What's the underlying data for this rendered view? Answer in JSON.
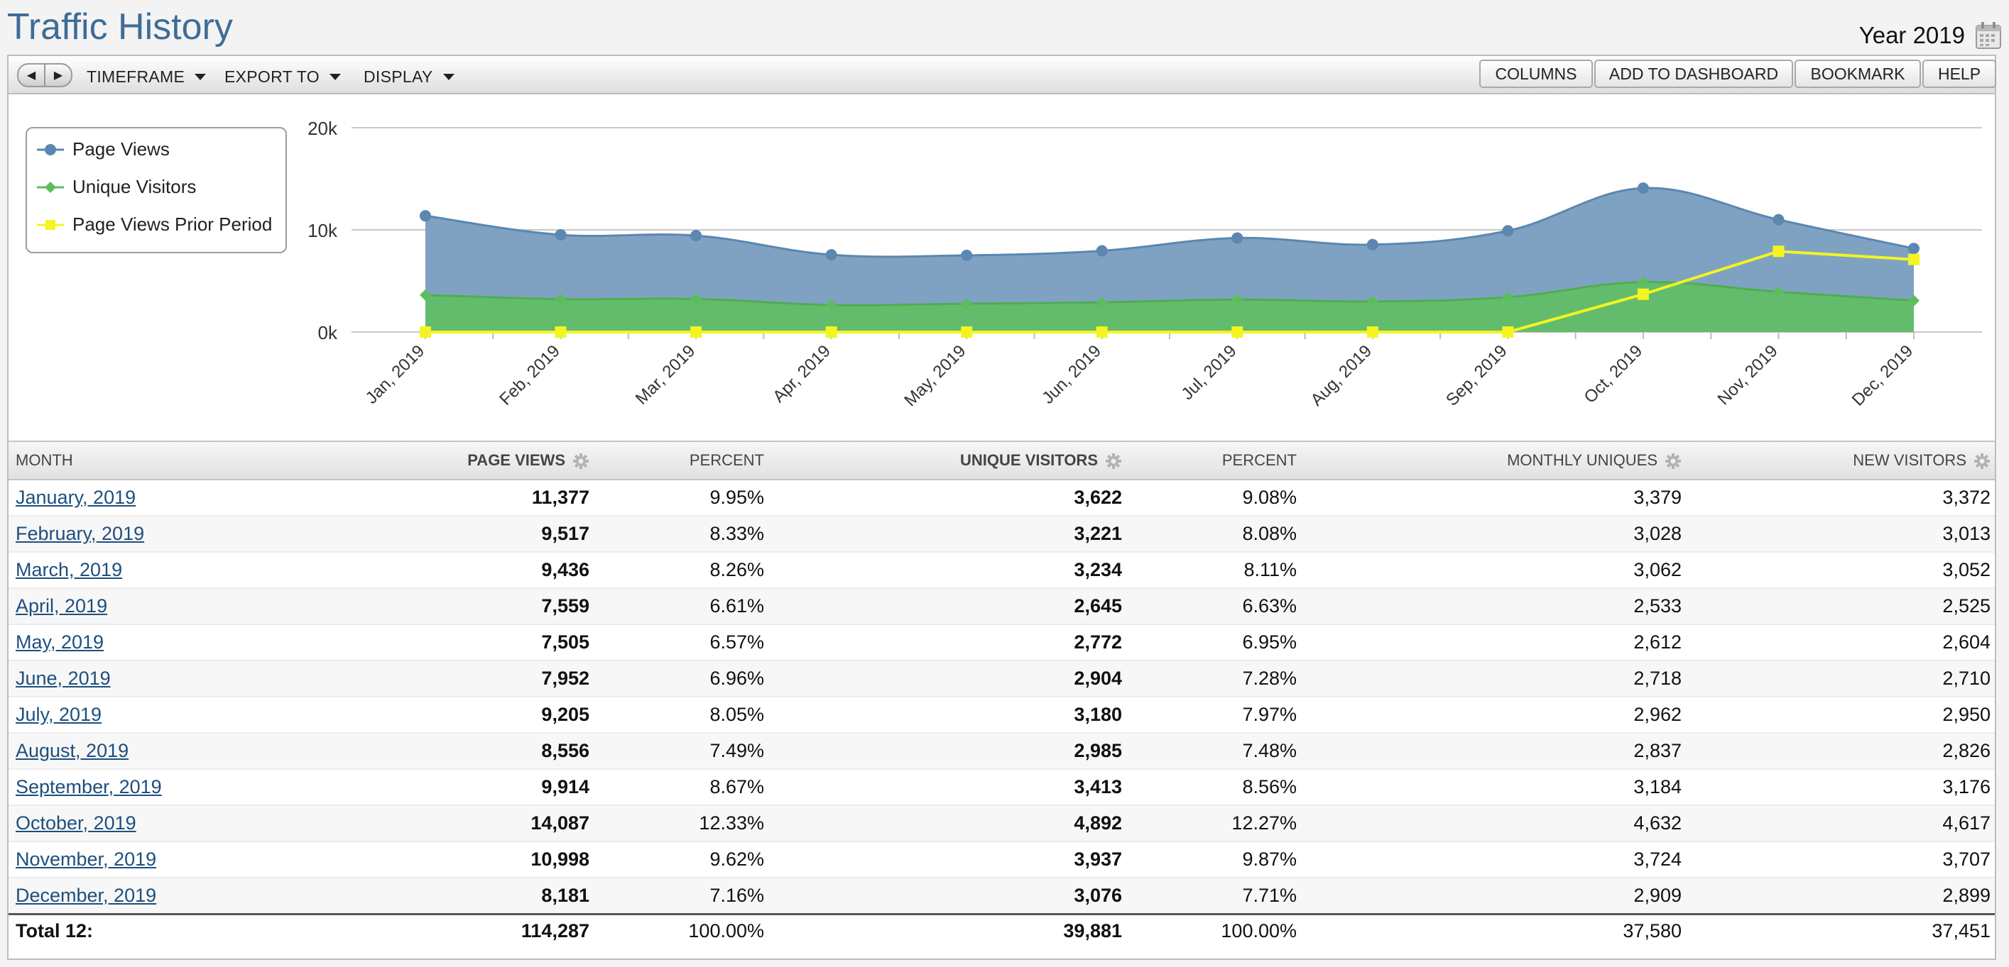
{
  "page": {
    "title": "Traffic History",
    "period_label": "Year 2019"
  },
  "toolbar": {
    "timeframe_label": "TIMEFRAME",
    "export_label": "EXPORT TO",
    "display_label": "DISPLAY",
    "columns_label": "COLUMNS",
    "add_dashboard_label": "ADD TO DASHBOARD",
    "bookmark_label": "BOOKMARK",
    "help_label": "HELP"
  },
  "colors": {
    "page_views": "#5b87b0",
    "unique_visitors": "#5cbd5c",
    "prior_period": "#f4f422",
    "title": "#3e6d98",
    "link": "#1e4f7d"
  },
  "chart_data": {
    "type": "area",
    "legend_position": "top-left",
    "grid": true,
    "x": [
      "Jan, 2019",
      "Feb, 2019",
      "Mar, 2019",
      "Apr, 2019",
      "May, 2019",
      "Jun, 2019",
      "Jul, 2019",
      "Aug, 2019",
      "Sep, 2019",
      "Oct, 2019",
      "Nov, 2019",
      "Dec, 2019"
    ],
    "y_ticks": [
      "0k",
      "10k",
      "20k"
    ],
    "ylim": [
      0,
      20000
    ],
    "series": [
      {
        "name": "Page Views",
        "marker": "circle",
        "values": [
          11377,
          9517,
          9436,
          7559,
          7505,
          7952,
          9205,
          8556,
          9914,
          14087,
          10998,
          8181
        ]
      },
      {
        "name": "Unique Visitors",
        "marker": "diamond",
        "values": [
          3622,
          3221,
          3234,
          2645,
          2772,
          2904,
          3180,
          2985,
          3413,
          4892,
          3937,
          3076
        ]
      },
      {
        "name": "Page Views Prior Period",
        "marker": "square",
        "values": [
          0,
          0,
          0,
          0,
          0,
          0,
          0,
          0,
          0,
          3700,
          7900,
          7100
        ]
      }
    ]
  },
  "table": {
    "columns": [
      "MONTH",
      "PAGE VIEWS",
      "PERCENT",
      "UNIQUE VISITORS",
      "PERCENT",
      "MONTHLY UNIQUES",
      "NEW VISITORS"
    ],
    "rows": [
      {
        "month": "January, 2019",
        "page_views": "11,377",
        "pv_percent": "9.95%",
        "unique_visitors": "3,622",
        "uv_percent": "9.08%",
        "monthly_uniques": "3,379",
        "new_visitors": "3,372"
      },
      {
        "month": "February, 2019",
        "page_views": "9,517",
        "pv_percent": "8.33%",
        "unique_visitors": "3,221",
        "uv_percent": "8.08%",
        "monthly_uniques": "3,028",
        "new_visitors": "3,013"
      },
      {
        "month": "March, 2019",
        "page_views": "9,436",
        "pv_percent": "8.26%",
        "unique_visitors": "3,234",
        "uv_percent": "8.11%",
        "monthly_uniques": "3,062",
        "new_visitors": "3,052"
      },
      {
        "month": "April, 2019",
        "page_views": "7,559",
        "pv_percent": "6.61%",
        "unique_visitors": "2,645",
        "uv_percent": "6.63%",
        "monthly_uniques": "2,533",
        "new_visitors": "2,525"
      },
      {
        "month": "May, 2019",
        "page_views": "7,505",
        "pv_percent": "6.57%",
        "unique_visitors": "2,772",
        "uv_percent": "6.95%",
        "monthly_uniques": "2,612",
        "new_visitors": "2,604"
      },
      {
        "month": "June, 2019",
        "page_views": "7,952",
        "pv_percent": "6.96%",
        "unique_visitors": "2,904",
        "uv_percent": "7.28%",
        "monthly_uniques": "2,718",
        "new_visitors": "2,710"
      },
      {
        "month": "July, 2019",
        "page_views": "9,205",
        "pv_percent": "8.05%",
        "unique_visitors": "3,180",
        "uv_percent": "7.97%",
        "monthly_uniques": "2,962",
        "new_visitors": "2,950"
      },
      {
        "month": "August, 2019",
        "page_views": "8,556",
        "pv_percent": "7.49%",
        "unique_visitors": "2,985",
        "uv_percent": "7.48%",
        "monthly_uniques": "2,837",
        "new_visitors": "2,826"
      },
      {
        "month": "September, 2019",
        "page_views": "9,914",
        "pv_percent": "8.67%",
        "unique_visitors": "3,413",
        "uv_percent": "8.56%",
        "monthly_uniques": "3,184",
        "new_visitors": "3,176"
      },
      {
        "month": "October, 2019",
        "page_views": "14,087",
        "pv_percent": "12.33%",
        "unique_visitors": "4,892",
        "uv_percent": "12.27%",
        "monthly_uniques": "4,632",
        "new_visitors": "4,617"
      },
      {
        "month": "November, 2019",
        "page_views": "10,998",
        "pv_percent": "9.62%",
        "unique_visitors": "3,937",
        "uv_percent": "9.87%",
        "monthly_uniques": "3,724",
        "new_visitors": "3,707"
      },
      {
        "month": "December, 2019",
        "page_views": "8,181",
        "pv_percent": "7.16%",
        "unique_visitors": "3,076",
        "uv_percent": "7.71%",
        "monthly_uniques": "2,909",
        "new_visitors": "2,899"
      }
    ],
    "total": {
      "label": "Total 12:",
      "page_views": "114,287",
      "pv_percent": "100.00%",
      "unique_visitors": "39,881",
      "uv_percent": "100.00%",
      "monthly_uniques": "37,580",
      "new_visitors": "37,451"
    }
  }
}
